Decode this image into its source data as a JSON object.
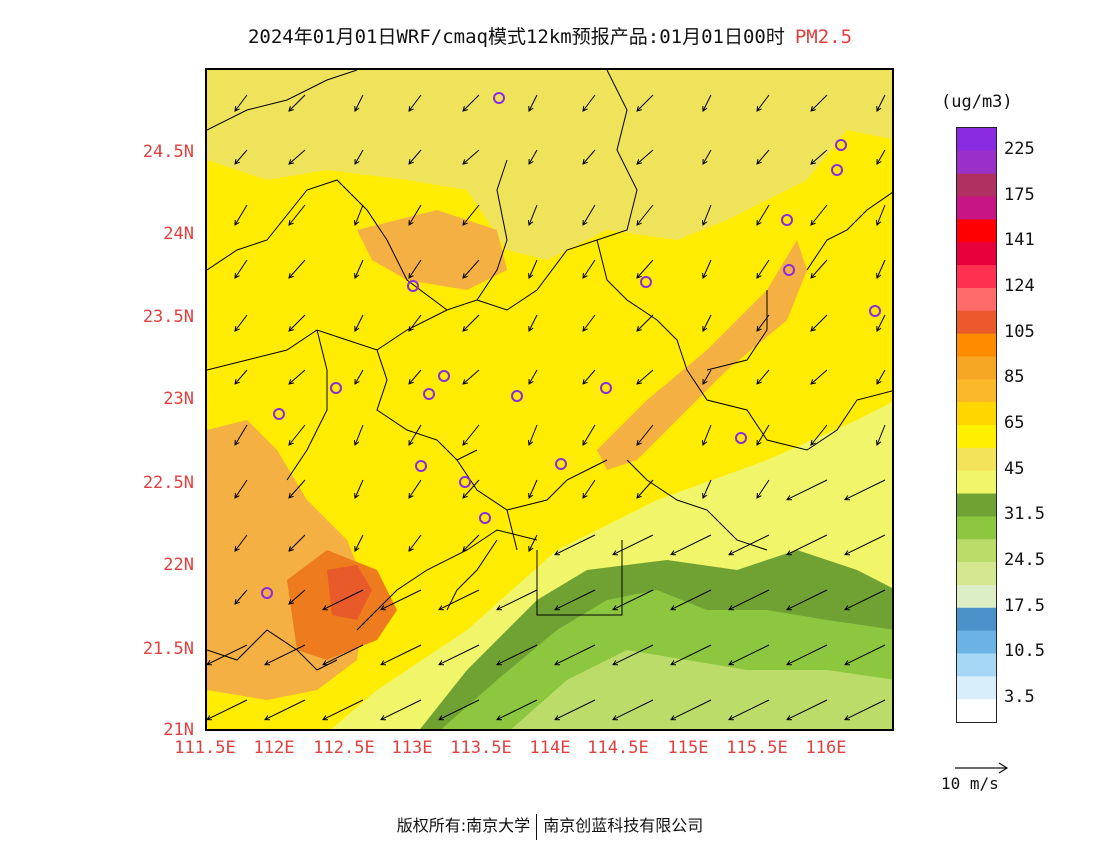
{
  "title": {
    "main": "2024年01月01日WRF/cmaq模式12km预报产品:01月01日00时",
    "variable": "PM2.5"
  },
  "axes": {
    "lon_ticks": [
      "111.5E",
      "112E",
      "112.5E",
      "113E",
      "113.5E",
      "114E",
      "114.5E",
      "115E",
      "115.5E",
      "116E"
    ],
    "lat_ticks": [
      "24.5N",
      "24N",
      "23.5N",
      "23N",
      "22.5N",
      "22N",
      "21.5N",
      "21N"
    ]
  },
  "legend": {
    "unit": "(ug/m3)",
    "labels": [
      "225",
      "175",
      "141",
      "124",
      "105",
      "85",
      "65",
      "45",
      "31.5",
      "24.5",
      "17.5",
      "10.5",
      "3.5"
    ],
    "colors": [
      "#8a2be2",
      "#9b30c9",
      "#b03060",
      "#c71585",
      "#ff0000",
      "#e8003c",
      "#ff3050",
      "#ff6a6a",
      "#ea5a2a",
      "#ff8c00",
      "#f5a623",
      "#fbb829",
      "#ffd700",
      "#fff000",
      "#f2e35a",
      "#f0f56a",
      "#6fa232",
      "#8dc63f",
      "#bcdc6a",
      "#d5e88f",
      "#dceec5",
      "#4a90c9",
      "#6bb3e4",
      "#a5d8f5",
      "#d8eefb",
      "#ffffff"
    ],
    "wind_label": "10 m/s"
  },
  "footer": {
    "left": "版权所有:南京大学",
    "right": "南京创蓝科技有限公司"
  },
  "map": {
    "colors": {
      "background": "#ffec00",
      "light_yellow": "#f0e35c",
      "pale_yellow": "#f0f56a",
      "orange_light": "#f5b044",
      "orange_mid": "#f5a623",
      "orange_dark": "#ee7b1d",
      "orange_red": "#e85a2a",
      "green_dark": "#6fa232",
      "green_mid": "#8dc63f",
      "green_light": "#bcdc6a",
      "green_pale": "#d5e88f"
    },
    "station_color": "#8a2be2",
    "station_count": 20
  }
}
